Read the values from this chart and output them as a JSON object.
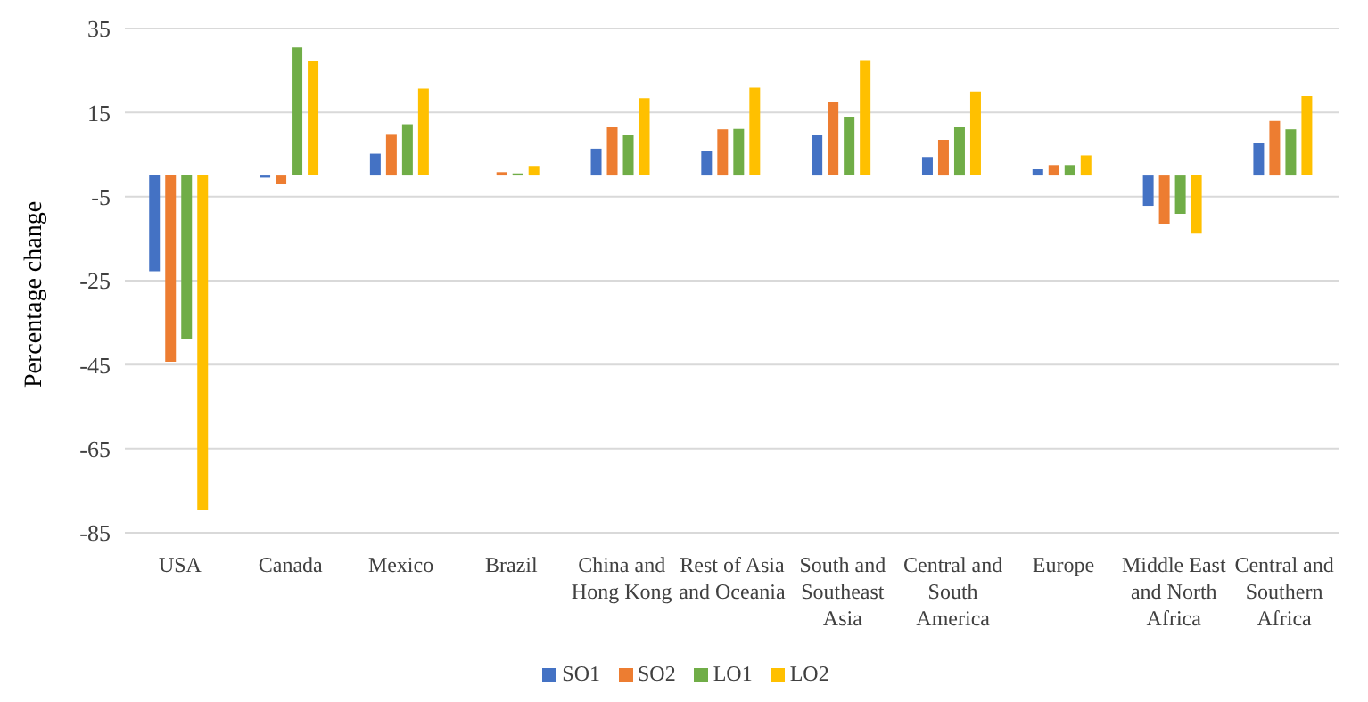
{
  "chart_data": {
    "type": "bar",
    "ylabel": "Percentage change",
    "categories": [
      "USA",
      "Canada",
      "Mexico",
      "Brazil",
      "China and Hong Kong",
      "Rest of Asia and Oceania",
      "South and Southeast Asia",
      "Central and South America",
      "Europe",
      "Middle East and North Africa",
      "Central and Southern Africa"
    ],
    "series": [
      {
        "name": "SO1",
        "color": "#4472c4",
        "values": [
          -22.8,
          -0.5,
          5.2,
          0,
          6.4,
          5.8,
          9.7,
          4.4,
          1.5,
          -7.2,
          7.7
        ]
      },
      {
        "name": "SO2",
        "color": "#ed7d31",
        "values": [
          -44.3,
          -2,
          9.9,
          0.8,
          11.5,
          11,
          17.4,
          8.5,
          2.5,
          -11.5,
          13
        ]
      },
      {
        "name": "LO1",
        "color": "#70ad47",
        "values": [
          -38.8,
          30.5,
          12.2,
          0.5,
          9.7,
          11.1,
          14,
          11.5,
          2.5,
          -9.1,
          11
        ]
      },
      {
        "name": "LO2",
        "color": "#ffc000",
        "values": [
          -79.5,
          27.2,
          20.7,
          2.3,
          18.4,
          20.9,
          27.5,
          20,
          4.8,
          -13.8,
          18.9
        ]
      }
    ],
    "ylim": [
      -85,
      35
    ],
    "yticks": [
      35,
      15,
      -5,
      -25,
      -45,
      -65,
      -85
    ],
    "grid": "y",
    "legend": "bottom"
  }
}
